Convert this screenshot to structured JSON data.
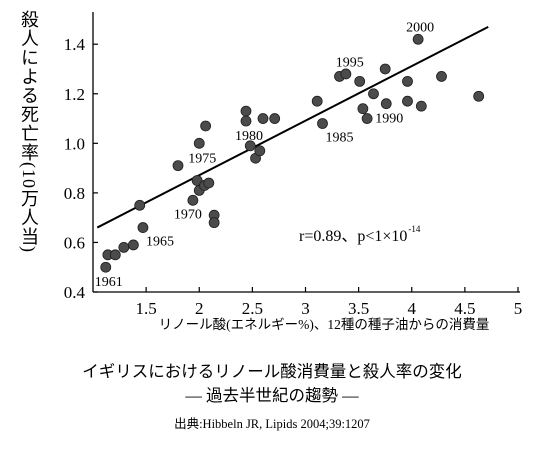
{
  "chart_data": {
    "type": "scatter",
    "title": "イギリスにおけるリノール酸消費量と殺人率の変化",
    "subtitle": "— 過去半世紀の趨勢 —",
    "source": "出典:Hibbeln JR, Lipids 2004;39:1207",
    "xlabel": "リノール酸(エネルギー%)、12種の種子油からの消費量",
    "ylabel": "殺人による死亡率(10万人当)",
    "xlim": [
      1.0,
      5.0
    ],
    "ylim": [
      0.4,
      1.53
    ],
    "grid": false,
    "legend": "none",
    "x_ticks": [
      {
        "value": 1.5,
        "label": "1.5"
      },
      {
        "value": 2,
        "label": "2"
      },
      {
        "value": 2.5,
        "label": "2.5"
      },
      {
        "value": 3,
        "label": "3"
      },
      {
        "value": 3.5,
        "label": "3.5"
      },
      {
        "value": 4,
        "label": "4"
      },
      {
        "value": 4.5,
        "label": "4.5"
      },
      {
        "value": 5,
        "label": "5"
      }
    ],
    "y_ticks": [
      {
        "value": 0.4,
        "label": "0.4"
      },
      {
        "value": 0.6,
        "label": "0.6"
      },
      {
        "value": 0.8,
        "label": "0.8"
      },
      {
        "value": 1.0,
        "label": "1.0"
      },
      {
        "value": 1.2,
        "label": "1.2"
      },
      {
        "value": 1.4,
        "label": "1.4"
      }
    ],
    "points": [
      {
        "x": 1.12,
        "y": 0.5,
        "label": "1961",
        "label_pos": "below"
      },
      {
        "x": 1.14,
        "y": 0.55
      },
      {
        "x": 1.21,
        "y": 0.55
      },
      {
        "x": 1.29,
        "y": 0.58
      },
      {
        "x": 1.38,
        "y": 0.59
      },
      {
        "x": 1.47,
        "y": 0.66,
        "label": "1965",
        "label_pos": "below-right"
      },
      {
        "x": 1.44,
        "y": 0.75
      },
      {
        "x": 1.8,
        "y": 0.91
      },
      {
        "x": 1.94,
        "y": 0.77,
        "label": "1970",
        "label_pos": "below-left"
      },
      {
        "x": 1.98,
        "y": 0.85
      },
      {
        "x": 2.0,
        "y": 0.81
      },
      {
        "x": 2.05,
        "y": 0.83
      },
      {
        "x": 2.09,
        "y": 0.84
      },
      {
        "x": 2.0,
        "y": 1.0,
        "label": "1975",
        "label_pos": "below"
      },
      {
        "x": 2.06,
        "y": 1.07
      },
      {
        "x": 2.14,
        "y": 0.71
      },
      {
        "x": 2.14,
        "y": 0.68
      },
      {
        "x": 2.44,
        "y": 1.13
      },
      {
        "x": 2.44,
        "y": 1.09,
        "label": "1980",
        "label_pos": "below"
      },
      {
        "x": 2.48,
        "y": 0.99
      },
      {
        "x": 2.53,
        "y": 0.94
      },
      {
        "x": 2.57,
        "y": 0.97
      },
      {
        "x": 2.6,
        "y": 1.1
      },
      {
        "x": 2.71,
        "y": 1.1
      },
      {
        "x": 3.11,
        "y": 1.17
      },
      {
        "x": 3.16,
        "y": 1.08,
        "label": "1985",
        "label_pos": "below-right"
      },
      {
        "x": 3.32,
        "y": 1.27
      },
      {
        "x": 3.38,
        "y": 1.28
      },
      {
        "x": 3.51,
        "y": 1.25,
        "label": "1995",
        "label_pos": "above-left"
      },
      {
        "x": 3.54,
        "y": 1.14
      },
      {
        "x": 3.58,
        "y": 1.1
      },
      {
        "x": 3.64,
        "y": 1.2
      },
      {
        "x": 3.75,
        "y": 1.3
      },
      {
        "x": 3.76,
        "y": 1.16,
        "label": "1990",
        "label_pos": "below"
      },
      {
        "x": 3.96,
        "y": 1.25
      },
      {
        "x": 3.96,
        "y": 1.17
      },
      {
        "x": 4.06,
        "y": 1.42,
        "label": "2000",
        "label_pos": "above"
      },
      {
        "x": 4.09,
        "y": 1.15
      },
      {
        "x": 4.28,
        "y": 1.27
      },
      {
        "x": 4.63,
        "y": 1.19
      }
    ],
    "regression_line": {
      "x": [
        1.04,
        4.72
      ],
      "y": [
        0.66,
        1.47
      ]
    },
    "stats": {
      "text": "r=0.89、p<1×10",
      "exponent": "-14"
    },
    "colors": {
      "marker": "#4b4b4b",
      "marker_edge": "#1e1e1e",
      "line": "#000000",
      "axis": "#000000"
    }
  }
}
